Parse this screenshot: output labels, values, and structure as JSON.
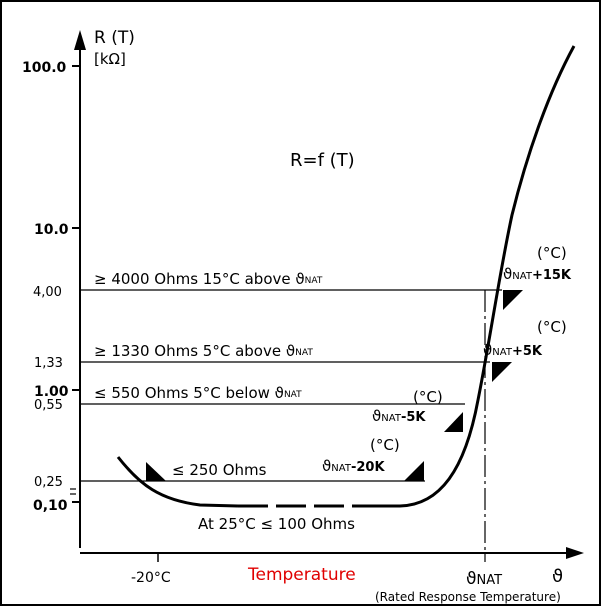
{
  "y_axis": {
    "title": "R (T)",
    "unit": "[kΩ]",
    "ticks": [
      "100.0",
      "10.0",
      "4,00",
      "1,33",
      "1.00",
      "0,55",
      "0,25",
      "0,10"
    ]
  },
  "x_axis": {
    "title": "Temperature",
    "title_color": "#e00000",
    "symbol": "ϑ",
    "tick_minus20": "-20°C",
    "nat_label": "ϑ",
    "nat_sub": "NAT",
    "rated_note": "(Rated Response Temperature)"
  },
  "formula": "R=f (T)",
  "thresholds": [
    {
      "text": "≥ 4000 Ohms 15°C above ϑ",
      "sub": "NAT"
    },
    {
      "text": "≥ 1330 Ohms 5°C above ϑ",
      "sub": "NAT"
    },
    {
      "text": "≤ 550 Ohms 5°C below ϑ",
      "sub": "NAT"
    },
    {
      "text": "≤ 250 Ohms",
      "sub": ""
    }
  ],
  "bottom_note": "At 25°C ≤ 100 Ohms",
  "markers": [
    {
      "unit": "(°C)",
      "sym": "ϑ",
      "sub": "NAT",
      "offset": "+15K"
    },
    {
      "unit": "(°C)",
      "sym": "ϑ",
      "sub": "NAT",
      "offset": "+5K"
    },
    {
      "unit": "(°C)",
      "sym": "ϑ",
      "sub": "NAT",
      "offset": "-5K"
    },
    {
      "unit": "(°C)",
      "sym": "ϑ",
      "sub": "NAT",
      "offset": "-20K"
    }
  ]
}
